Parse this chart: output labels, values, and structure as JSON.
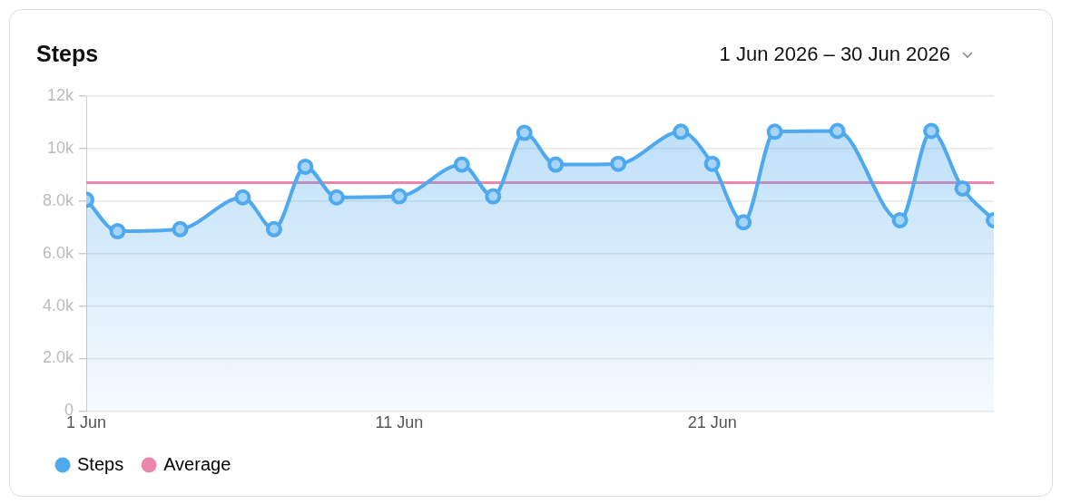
{
  "chart_data": {
    "type": "area",
    "title": "Steps",
    "subtitle": "1 Jun 2026 – 30 Jun 2026",
    "x": [
      "2026-06-01",
      "2026-06-02",
      "2026-06-04",
      "2026-06-06",
      "2026-06-07",
      "2026-06-08",
      "2026-06-09",
      "2026-06-11",
      "2026-06-13",
      "2026-06-14",
      "2026-06-15",
      "2026-06-16",
      "2026-06-18",
      "2026-06-20",
      "2026-06-21",
      "2026-06-22",
      "2026-06-23",
      "2026-06-25",
      "2026-06-27",
      "2026-06-28",
      "2026-06-29",
      "2026-06-30"
    ],
    "series": [
      {
        "name": "Steps",
        "color": "#4ea9ee",
        "values": [
          8050,
          6850,
          6930,
          8140,
          6930,
          9310,
          8140,
          8180,
          9390,
          8180,
          10600,
          9390,
          9420,
          10640,
          9420,
          7190,
          10640,
          10670,
          7270,
          10670,
          8480,
          7270
        ]
      }
    ],
    "xlim": [
      "2026-06-01",
      "2026-06-30"
    ],
    "xticks": [
      {
        "value": "2026-06-01",
        "label": "1 Jun"
      },
      {
        "value": "2026-06-11",
        "label": "11 Jun"
      },
      {
        "value": "2026-06-21",
        "label": "21 Jun"
      }
    ],
    "ylim": [
      0,
      12000
    ],
    "yticks": [
      {
        "value": 0,
        "label": "0"
      },
      {
        "value": 2000,
        "label": "2.0k"
      },
      {
        "value": 4000,
        "label": "4.0k"
      },
      {
        "value": 6000,
        "label": "6.0k"
      },
      {
        "value": 8000,
        "label": "8.0k"
      },
      {
        "value": 10000,
        "label": "10k"
      },
      {
        "value": 12000,
        "label": "12k"
      }
    ],
    "ref_lines": [
      {
        "axis": "y",
        "value": 8700,
        "label": "Average",
        "color": "#ec86ad"
      }
    ],
    "grid": "y",
    "legend": "bottom",
    "marker": "circle",
    "line_style": "solid"
  }
}
